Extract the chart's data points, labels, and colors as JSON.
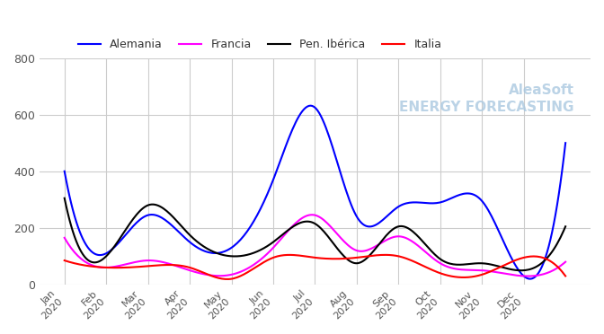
{
  "title": "",
  "x_labels": [
    "Jan\n2020",
    "Feb\n2020",
    "Mar\n2020",
    "Apr\n2020",
    "May\n2020",
    "Jun\n2020",
    "Jul\n2020",
    "Aug\n2020",
    "Sep\n2020",
    "Oct\n2020",
    "Nov\n2020",
    "Dec\n2020"
  ],
  "series": {
    "Alemania": {
      "color": "#0000ff",
      "data": [
        400,
        110,
        245,
        150,
        130,
        370,
        625,
        240,
        275,
        290,
        295,
        30,
        500
      ]
    },
    "Francia": {
      "color": "#ff00ff",
      "data": [
        165,
        60,
        85,
        50,
        35,
        130,
        245,
        120,
        170,
        75,
        50,
        30,
        80
      ]
    },
    "Pen. Ibérica": {
      "color": "#000000",
      "data": [
        305,
        100,
        280,
        175,
        100,
        150,
        215,
        75,
        205,
        90,
        75,
        50,
        205
      ]
    },
    "Italia": {
      "color": "#ff0000",
      "data": [
        85,
        60,
        65,
        60,
        20,
        95,
        95,
        95,
        100,
        40,
        35,
        95,
        30
      ]
    }
  },
  "ylim": [
    0,
    800
  ],
  "yticks": [
    0,
    200,
    400,
    600,
    800
  ],
  "bg_color": "#ffffff",
  "grid_color": "#cccccc",
  "watermark": "AleaSoft\nENERGY FORECASTING",
  "watermark_color": "#aac8e0"
}
